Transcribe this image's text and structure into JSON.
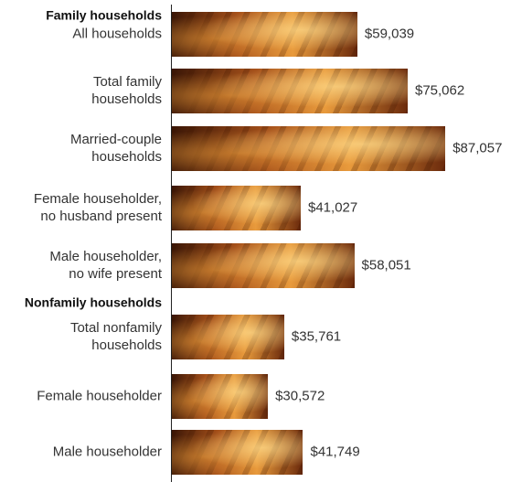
{
  "chart_data": {
    "type": "bar",
    "groups": [
      {
        "name": "Family households",
        "categories": [
          "All households",
          "Total family\nhouseholds",
          "Married-couple\nhouseholds",
          "Female householder,\nno husband present",
          "Male householder,\nno wife present"
        ],
        "values": [
          59039,
          75062,
          87057,
          41027,
          58051
        ],
        "value_labels": [
          "$59,039",
          "$75,062",
          "$87,057",
          "$41,027",
          "$58,051"
        ]
      },
      {
        "name": "Nonfamily households",
        "categories": [
          "Total nonfamily\nhouseholds",
          "Female householder",
          "Male householder"
        ],
        "values": [
          35761,
          30572,
          41749
        ],
        "value_labels": [
          "$35,761",
          "$30,572",
          "$41,749"
        ]
      }
    ]
  }
}
